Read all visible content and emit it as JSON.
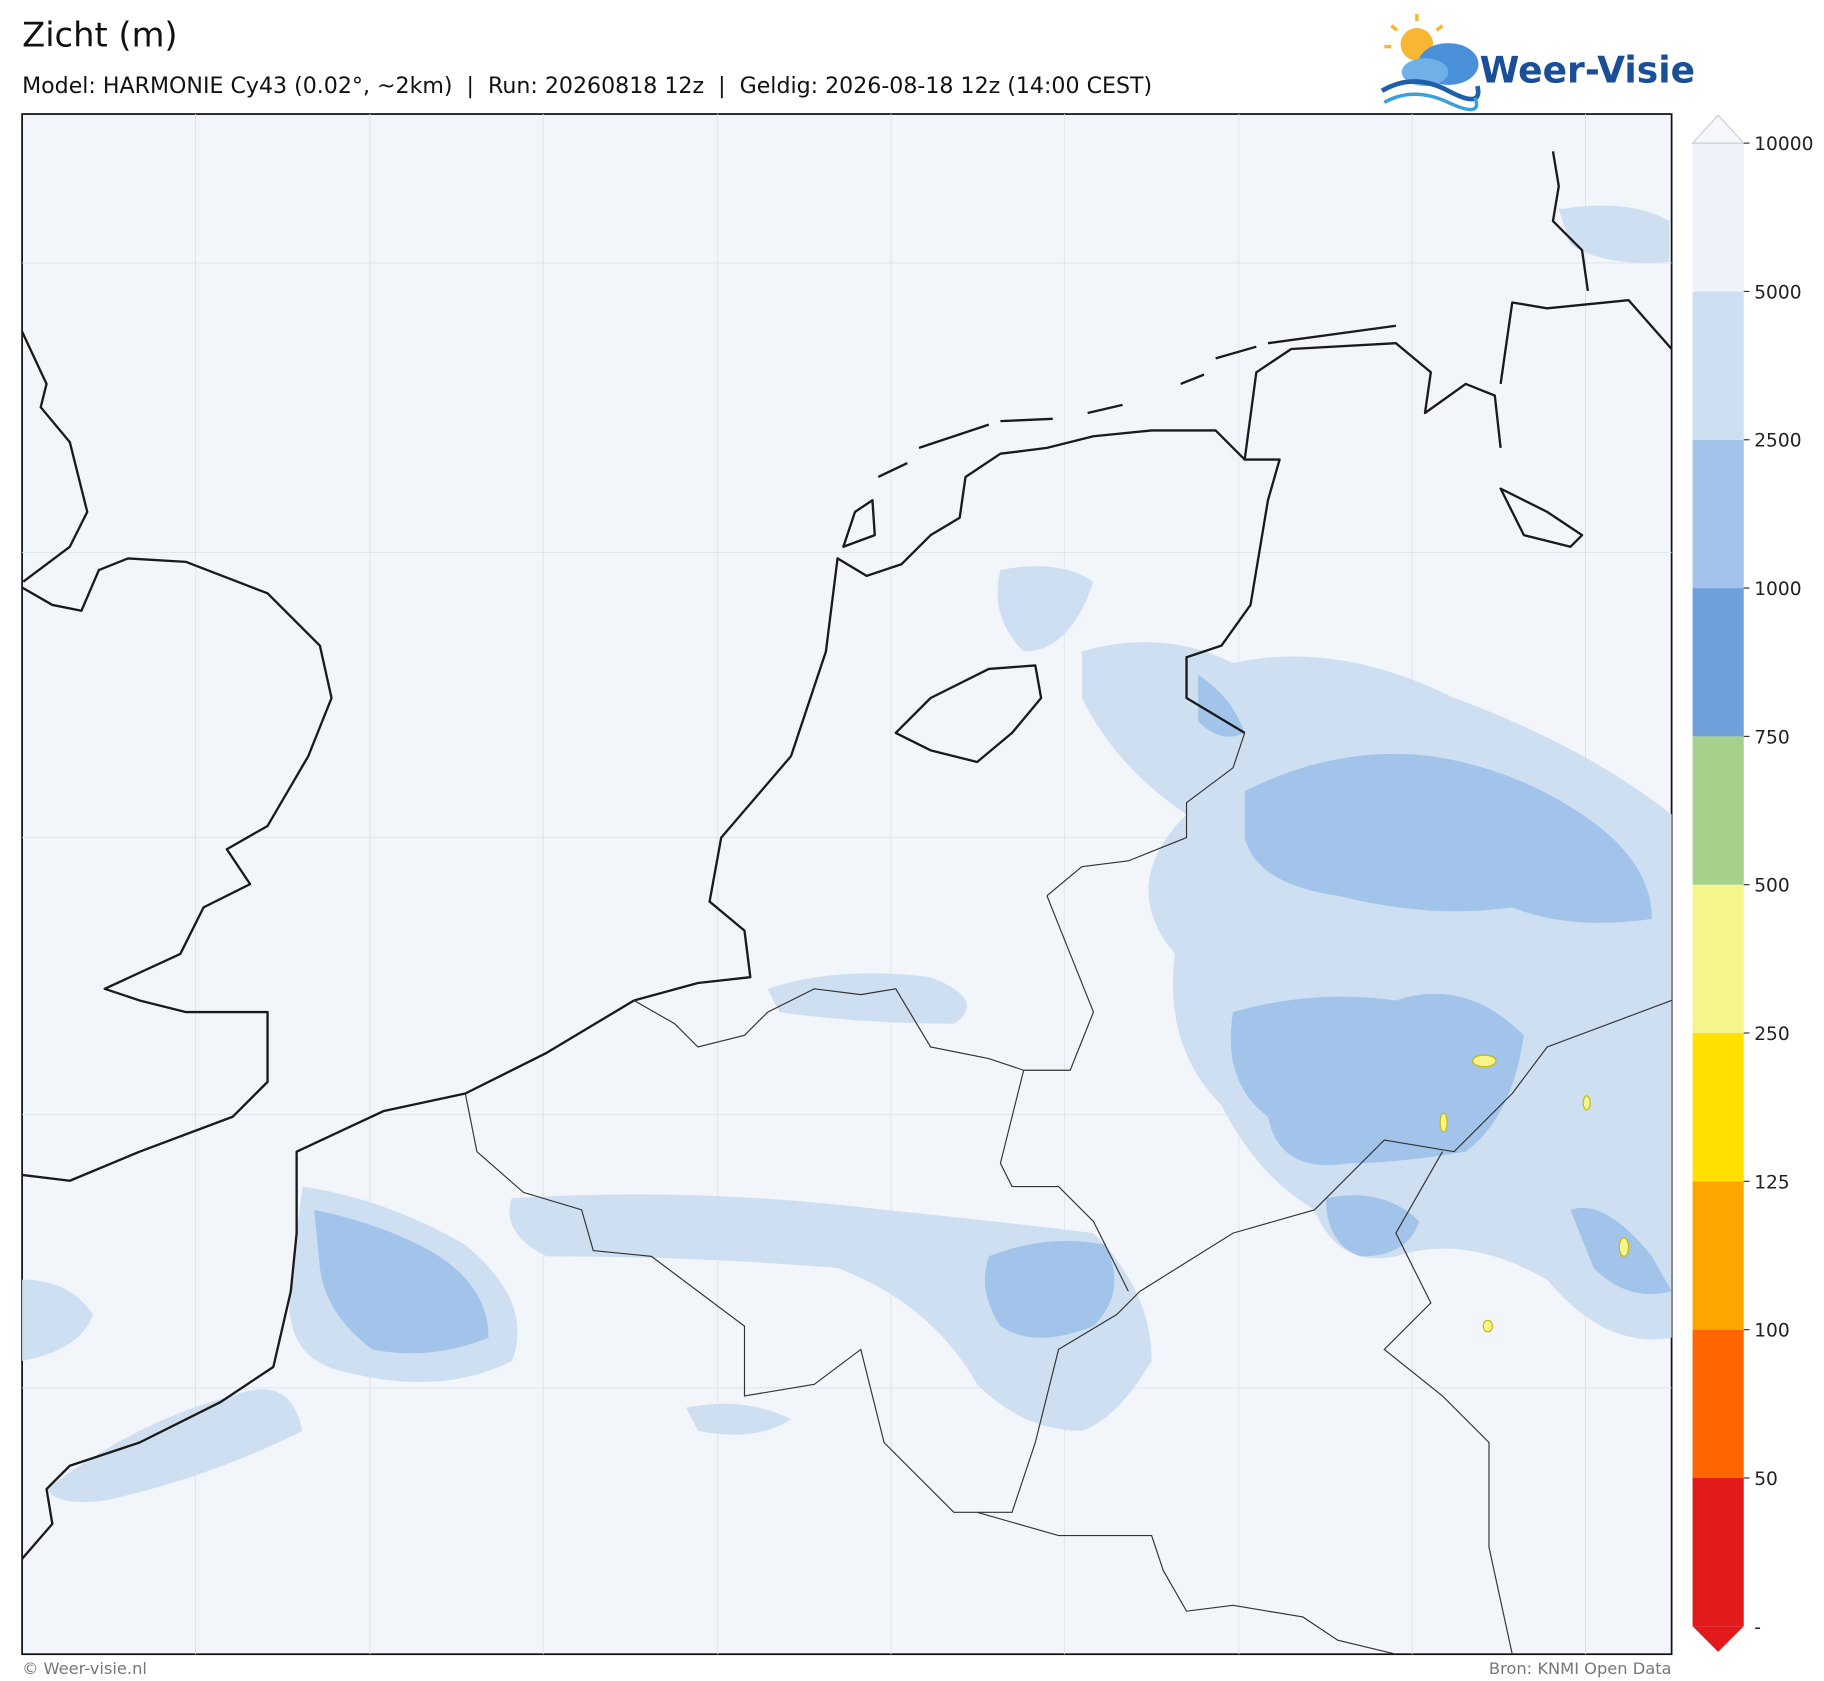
{
  "header": {
    "title": "Zicht (m)",
    "subtitle": "Model: HARMONIE Cy43 (0.02°, ~2km)  |  Run: 20260818 12z  |  Geldig: 2026-08-18 12z (14:00 CEST)"
  },
  "logo": {
    "text": "Weer-Visie"
  },
  "colorbar": {
    "bottom_label": "-",
    "levels": [
      50,
      100,
      125,
      250,
      500,
      750,
      1000,
      2500,
      5000,
      10000
    ],
    "colors": [
      "#e31a1c",
      "#ff6600",
      "#ffa500",
      "#ffe000",
      "#f5f58c",
      "#a8d08d",
      "#6fa0dc",
      "#a3c4ea",
      "#cfdff2",
      "#eef3fa",
      "#f5f7fb"
    ]
  },
  "footer": {
    "left": "© Weer-visie.nl",
    "right": "Bron: KNMI Open Data"
  }
}
